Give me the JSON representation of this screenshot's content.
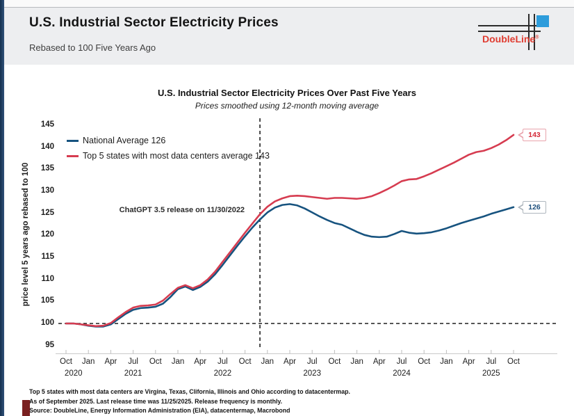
{
  "page": {
    "header": {
      "title": "U.S. Industrial Sector Electricity Prices",
      "subtitle": "Rebased to 100 Five Years Ago"
    },
    "logo": {
      "brand": "DoubleLine",
      "reg_mark": "®",
      "red": "#e03c31",
      "blue": "#2d9cdb"
    },
    "footnotes": [
      "Top 5 states with most data centers are Virgina, Texas, Clifornia, Illinois and Ohio according to datacentermap.",
      "As of September 2025. Last release time was 11/25/2025. Release frequency is monthly.",
      "Source: DoubleLine, Energy Information Administration (EIA), datacentermap, Macrobond"
    ]
  },
  "chart_data": {
    "type": "line",
    "title": "U.S. Industrial Sector Electricity Prices Over Past Five Years",
    "subtitle": "Prices smoothed using 12-month moving average",
    "ylabel": "price level 5 years ago rebased to 100",
    "ylim": [
      95,
      145
    ],
    "y_ticks": [
      95,
      100,
      105,
      110,
      115,
      120,
      125,
      130,
      135,
      140,
      145
    ],
    "x_unit": "monthly, Oct 2020 through Oct 2025",
    "month_tick_labels": [
      "Oct",
      "Jan",
      "Apr",
      "Jul",
      "Oct",
      "Jan",
      "Apr",
      "Jul",
      "Oct",
      "Jan",
      "Apr",
      "Jul",
      "Oct",
      "Jan",
      "Apr",
      "Jul",
      "Oct",
      "Jan",
      "Apr",
      "Jul",
      "Oct"
    ],
    "year_labels": [
      {
        "text": "2020",
        "month_index": 1
      },
      {
        "text": "2021",
        "month_index": 9
      },
      {
        "text": "2022",
        "month_index": 21
      },
      {
        "text": "2023",
        "month_index": 33
      },
      {
        "text": "2024",
        "month_index": 45
      },
      {
        "text": "2025",
        "month_index": 57
      }
    ],
    "grid": false,
    "legend_position": "top-left",
    "reference_lines": {
      "horizontal_y": 100,
      "vertical_month_index": 26
    },
    "annotation": {
      "text": "ChatGPT 3.5 release on 11/30/2022",
      "y_value": 125.5
    },
    "series": [
      {
        "name": "National Average 126",
        "slug": "national-average-line",
        "color": "#17537f",
        "end_callout": "126",
        "callout_text_color": "#1d4f7c",
        "callout_border_color": "#aeb6bd",
        "values": [
          100,
          100,
          99.8,
          99.5,
          99.3,
          99.3,
          99.8,
          101.0,
          102.2,
          103.1,
          103.5,
          103.6,
          103.8,
          104.5,
          106.0,
          107.8,
          108.4,
          107.6,
          108.3,
          109.5,
          111.2,
          113.3,
          115.5,
          117.7,
          119.8,
          121.8,
          123.6,
          125.2,
          126.3,
          126.9,
          127.1,
          126.8,
          126.1,
          125.2,
          124.3,
          123.5,
          122.8,
          122.4,
          121.6,
          120.8,
          120.1,
          119.7,
          119.6,
          119.7,
          120.3,
          121.0,
          120.6,
          120.4,
          120.5,
          120.7,
          121.1,
          121.6,
          122.2,
          122.8,
          123.3,
          123.8,
          124.3,
          124.9,
          125.4,
          125.9,
          126.4
        ]
      },
      {
        "name": "Top 5 states with most data centers average 143",
        "slug": "top5-data-center-states-line",
        "color": "#d63c50",
        "end_callout": "143",
        "callout_text_color": "#d42a38",
        "callout_border_color": "#e9a3ac",
        "values": [
          100,
          100,
          99.8,
          99.6,
          99.4,
          99.5,
          100.1,
          101.4,
          102.6,
          103.6,
          104.0,
          104.1,
          104.3,
          105.2,
          106.7,
          108.1,
          108.7,
          108.0,
          108.7,
          110.0,
          111.8,
          114.0,
          116.2,
          118.4,
          120.6,
          122.7,
          124.8,
          126.5,
          127.7,
          128.4,
          128.9,
          129.0,
          128.9,
          128.7,
          128.5,
          128.3,
          128.5,
          128.5,
          128.4,
          128.3,
          128.5,
          128.9,
          129.6,
          130.4,
          131.3,
          132.3,
          132.7,
          132.8,
          133.4,
          134.1,
          134.9,
          135.7,
          136.5,
          137.4,
          138.3,
          138.9,
          139.2,
          139.8,
          140.6,
          141.6,
          142.8
        ]
      }
    ]
  }
}
